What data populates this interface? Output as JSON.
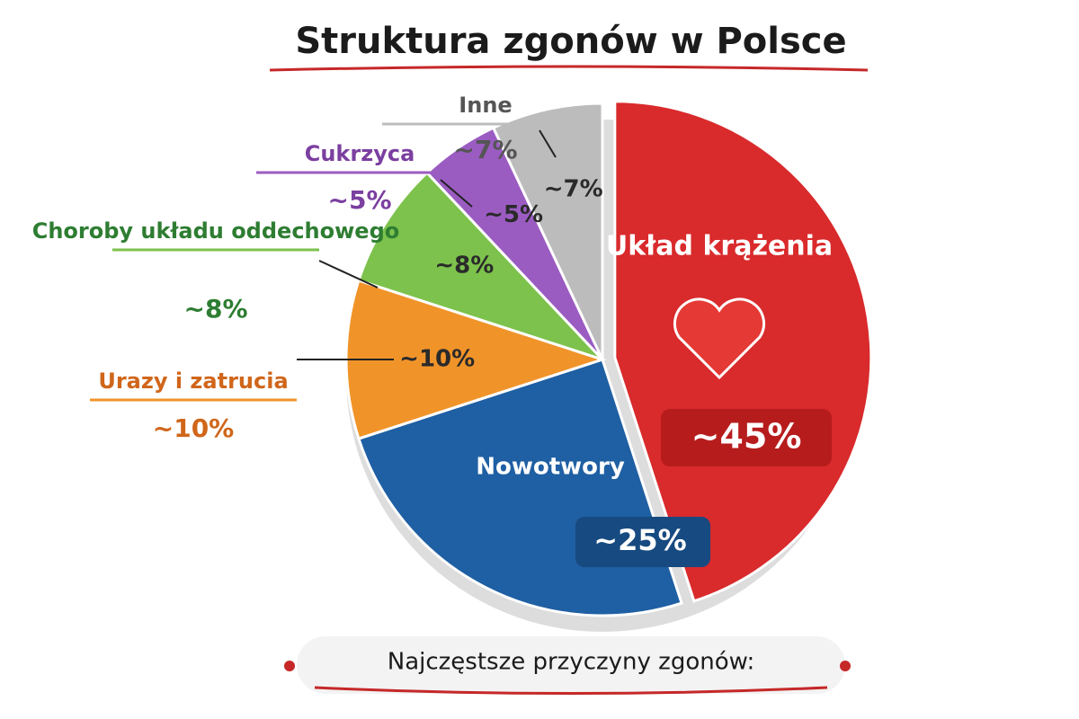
{
  "chart_data": {
    "type": "pie",
    "title": "Struktura zgonów w Polsce",
    "categories": [
      "Układ krążenia",
      "Nowotwory",
      "Urazy i zatrucia",
      "Choroby układu oddechowego",
      "Cukrzyca",
      "Inne"
    ],
    "values": [
      45,
      25,
      10,
      8,
      5,
      7
    ],
    "value_labels": [
      "~45%",
      "~25%",
      "~10%",
      "~8%",
      "~5%",
      "~7%"
    ],
    "colors": [
      "#d92a2c",
      "#1f5fa3",
      "#f0942a",
      "#7cc24c",
      "#9b5cc2",
      "#bcbcbc"
    ],
    "caption": "Najczęstsze przyczyny zgonów:"
  }
}
